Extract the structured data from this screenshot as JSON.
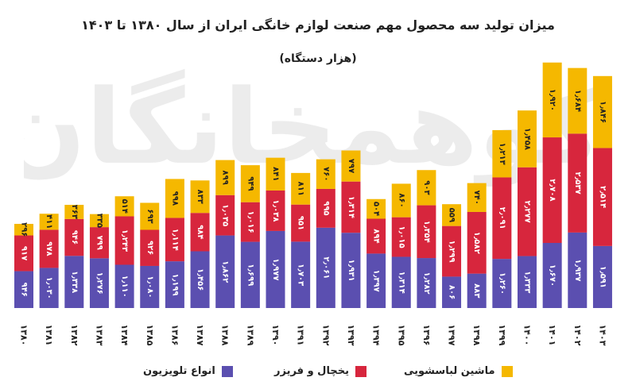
{
  "title": "میزان تولید سه محصول مهم صنعت لوازم خانگی ایران از سال ۱۳۸۰ تا ۱۴۰۳",
  "subtitle": "(هزار دستگاه)",
  "watermark": "اکوهمخانگان",
  "colors": {
    "tv": "#5b4fb0",
    "fridge": "#d7263d",
    "washer": "#f5b800"
  },
  "legend": [
    {
      "label": "انواع تلویزیون",
      "color": "#5b4fb0"
    },
    {
      "label": "یخچال و فریزر",
      "color": "#d7263d"
    },
    {
      "label": "ماشین لباسشویی",
      "color": "#f5b800"
    }
  ],
  "chart_data": {
    "type": "bar",
    "stacked": true,
    "title": "میزان تولید سه محصول مهم صنعت لوازم خانگی ایران از سال ۱۳۸۰ تا ۱۴۰۳",
    "subtitle": "(هزار دستگاه)",
    "categories": [
      "۱۳۸۰",
      "۱۳۸۱",
      "۱۳۸۲",
      "۱۳۸۳",
      "۱۳۸۴",
      "۱۳۸۵",
      "۱۳۸۶",
      "۱۳۸۷",
      "۱۳۸۸",
      "۱۳۸۹",
      "۱۳۹۰",
      "۱۳۹۱",
      "۱۳۹۲",
      "۱۳۹۳",
      "۱۳۹۴",
      "۱۳۹۵",
      "۱۳۹۶",
      "۱۳۹۷",
      "۱۳۹۸",
      "۱۳۹۹",
      "۱۴۰۰",
      "۱۴۰۱",
      "۱۴۰۲",
      "۱۴۰۳"
    ],
    "series": [
      {
        "name": "انواع تلویزیون",
        "color": "#5b4fb0",
        "values": [
          946,
          1030,
          1338,
          1276,
          1110,
          1080,
          1199,
          1456,
          1862,
          1699,
          1977,
          1703,
          2061,
          1931,
          1397,
          1314,
          1282,
          806,
          883,
          1260,
          1333,
          1670,
          1937,
          1591
        ],
        "labels": [
          "۹۴۶",
          "۱٫۰۳۰",
          "۱٫۳۳۸",
          "۱٫۲۷۶",
          "۱٫۱۱۰",
          "۱٫۰۸۰",
          "۱٫۱۹۹",
          "۱٫۴۵۶",
          "۱٫۸۶۲",
          "۱٫۶۹۹",
          "۱٫۹۷۷",
          "۱٫۷۰۳",
          "۲٫۰۶۱",
          "۱٫۹۳۱",
          "۱٫۳۹۷",
          "۱٫۳۱۴",
          "۱٫۲۸۲",
          "۸۰۶",
          "۸۸۳",
          "۱٫۲۶۰",
          "۱٫۳۳۳",
          "۱٫۶۷۰",
          "۱٫۹۳۷",
          "۱٫۵۹۱"
        ]
      },
      {
        "name": "یخچال و فریزر",
        "color": "#d7263d",
        "values": [
          917,
          978,
          946,
          799,
          1243,
          926,
          1114,
          984,
          1035,
          1016,
          1038,
          951,
          995,
          1314,
          894,
          1015,
          1354,
          1299,
          1582,
          2091,
          2277,
          2708,
          2537,
          2514
        ],
        "labels": [
          "۹۱۷",
          "۹۷۸",
          "۹۴۶",
          "۷۹۹",
          "۱٫۲۴۳",
          "۹۲۶",
          "۱٫۱۱۴",
          "۹۸۴",
          "۱٫۰۳۵",
          "۱٫۰۱۶",
          "۱٫۰۳۸",
          "۹۵۱",
          "۹۹۵",
          "۱٫۳۱۴",
          "۸۹۴",
          "۱٫۰۱۵",
          "۱٫۳۵۴",
          "۱٫۲۹۹",
          "۱٫۵۸۲",
          "۲٫۰۹۱",
          "۲٫۲۷۷",
          "۲٫۷۰۸",
          "۲٫۵۳۷",
          "۲٫۵۱۴"
        ]
      },
      {
        "name": "ماشین لباسشویی",
        "color": "#f5b800",
        "values": [
          296,
          411,
          363,
          335,
          514,
          693,
          998,
          833,
          899,
          949,
          841,
          811,
          760,
          797,
          504,
          860,
          903,
          559,
          740,
          1213,
          1458,
          1920,
          1684,
          1846
        ],
        "labels": [
          "۲۹۶",
          "۴۱۱",
          "۳۶۳",
          "۳۳۵",
          "۵۱۴",
          "۶۹۳",
          "۹۹۸",
          "۸۳۳",
          "۸۹۹",
          "۹۴۹",
          "۸۴۱",
          "۸۱۱",
          "۷۶۰",
          "۷۹۷",
          "۵۰۴",
          "۸۶۰",
          "۹۰۳",
          "۵۵۹",
          "۷۴۰",
          "۱٫۲۱۳",
          "۱٫۴۵۸",
          "۱٫۹۲۰",
          "۱٫۶۸۴",
          "۱٫۸۴۶"
        ]
      }
    ],
    "ylim": [
      0,
      6000
    ],
    "grid": false,
    "legend_position": "bottom"
  }
}
